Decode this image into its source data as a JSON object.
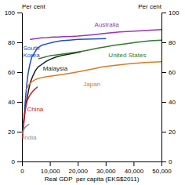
{
  "chart_data": {
    "type": "line",
    "x_label": "Real GDP  per capita (EKS$2011)",
    "y_label": "Per cent",
    "y2_label": "Per cent",
    "xlim": [
      0,
      50000
    ],
    "xticks": [
      0,
      {
        "value": 10000,
        "label": "10,000"
      },
      {
        "value": 20000,
        "label": "20,000"
      },
      {
        "value": 30000,
        "label": "30,000"
      },
      {
        "value": 40000,
        "label": "40,000"
      },
      {
        "value": 50000,
        "label": "50,000"
      }
    ],
    "ylim": [
      0,
      100
    ],
    "yticks": [
      0,
      20,
      40,
      60,
      80,
      100
    ],
    "y2lim": [
      0,
      100
    ],
    "y2ticks": [
      0,
      20,
      40,
      60,
      80,
      100
    ],
    "series": [
      {
        "name": "Australia",
        "color": "#9b30c0",
        "label_x": 26000,
        "label_y": 92,
        "x": [
          3000,
          5000,
          7000,
          9000,
          11000,
          13000,
          15000,
          18000,
          20000,
          25000,
          30000,
          35000,
          40000,
          45000,
          50000
        ],
        "values": [
          82,
          82.5,
          83,
          83.2,
          83.5,
          83.5,
          83.8,
          84,
          84.2,
          85,
          86,
          87,
          87.5,
          88,
          88.5
        ]
      },
      {
        "name": "South\nKorea",
        "color": "#1a4fcc",
        "label_x": 400,
        "label_y": 74,
        "x": [
          300,
          500,
          700,
          900,
          1100,
          1400,
          1800,
          2200,
          2800,
          3500,
          4500,
          5500,
          7000,
          9000,
          11000,
          14000,
          17000,
          20000,
          25000,
          30000
        ],
        "values": [
          18,
          22,
          27,
          32,
          38,
          45,
          53,
          59,
          65,
          70,
          73,
          76,
          78,
          79,
          80,
          81,
          81.5,
          82,
          82.2,
          82.5
        ]
      },
      {
        "name": "Malaysia",
        "color": "#1a1a1a",
        "label_x": 7500,
        "label_y": 62.5,
        "x": [
          500,
          800,
          1100,
          1500,
          2000,
          2500,
          3000,
          3800,
          4800,
          5800,
          7000,
          8500,
          10000,
          12000,
          15000,
          18000,
          21000
        ],
        "values": [
          26,
          30,
          34,
          39,
          44,
          49,
          53,
          57,
          61,
          63.5,
          65,
          67,
          68.5,
          70,
          71.5,
          72.5,
          73.5
        ]
      },
      {
        "name": "United States",
        "color": "#2e7d2e",
        "label_x": 31000,
        "label_y": 71.5,
        "x": [
          6000,
          8000,
          10000,
          12000,
          14000,
          16000,
          18000,
          20000,
          23000,
          27000,
          30000,
          33000,
          37000,
          41000,
          46000,
          50000
        ],
        "values": [
          69,
          70,
          71,
          71.5,
          72,
          72.5,
          73,
          73.5,
          74.5,
          76,
          77,
          78,
          79,
          80,
          81,
          81.5
        ]
      },
      {
        "name": "Japan",
        "color": "#e07820",
        "label_x": 22000,
        "label_y": 52,
        "x": [
          1500,
          2000,
          2500,
          3000,
          3500,
          4000,
          4800,
          5500,
          6500,
          7500,
          9000,
          11000,
          13000,
          15000,
          18000,
          21000,
          25000,
          29000,
          33000,
          38000,
          44000,
          50000
        ],
        "values": [
          48,
          50,
          51.5,
          52.5,
          53.5,
          54,
          55,
          55.5,
          56,
          56.5,
          57,
          57.5,
          58,
          58.5,
          59.5,
          60.5,
          62,
          63.5,
          64.5,
          65.5,
          66.5,
          67
        ]
      },
      {
        "name": "China",
        "color": "#cc2222",
        "label_x": 1800,
        "label_y": 35,
        "x": [
          200,
          350,
          550,
          750,
          950,
          1200,
          1500,
          1900,
          2400,
          3000,
          3800,
          4600,
          5500
        ],
        "values": [
          16,
          19,
          23,
          27,
          31,
          35,
          38,
          41,
          43,
          45,
          47,
          48.5,
          50
        ]
      },
      {
        "name": "India",
        "color": "#909090",
        "label_x": 300,
        "label_y": 16,
        "x": [
          200,
          350,
          500,
          650,
          800,
          1000,
          1200,
          1500,
          1800,
          2100,
          2500
        ],
        "values": [
          19,
          20,
          21,
          21.5,
          22,
          22.5,
          23,
          23.5,
          24,
          24.5,
          25
        ]
      }
    ]
  }
}
